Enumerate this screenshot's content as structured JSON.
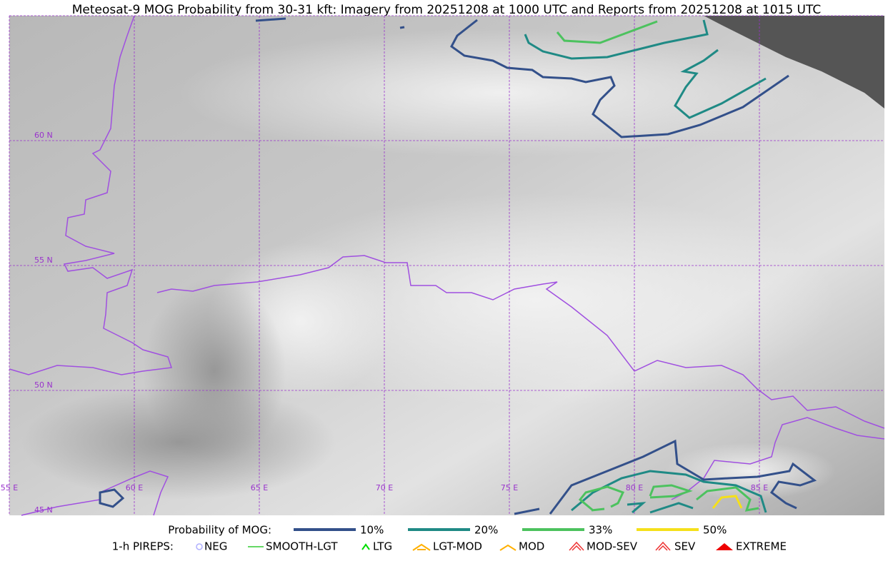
{
  "title": "Meteosat-9 MOG Probability from 30-31 kft: Imagery from 20251208 at 1000 UTC and Reports from 20251208 at 1015 UTC",
  "map": {
    "lat_labels": [
      "60 N",
      "55 N",
      "50 N",
      "45 N"
    ],
    "lon_labels": [
      "55 E",
      "60 E",
      "65 E",
      "70 E",
      "75 E",
      "80 E",
      "85 E"
    ],
    "grid_color": "#9933cc"
  },
  "legend": {
    "mog_label": "Probability of MOG:",
    "mog_levels": [
      {
        "label": "10%",
        "color": "#33508a"
      },
      {
        "label": "20%",
        "color": "#1f8a85"
      },
      {
        "label": "33%",
        "color": "#4cc25e"
      },
      {
        "label": "50%",
        "color": "#f5e01a"
      }
    ],
    "pirep_label": "1-h PIREPS:",
    "pireps": [
      {
        "label": "NEG",
        "color": "#b0b0ff"
      },
      {
        "label": "SMOOTH-LGT",
        "color": "#33cc33"
      },
      {
        "label": "LTG",
        "color": "#00dd00"
      },
      {
        "label": "LGT-MOD",
        "color": "#ffb000"
      },
      {
        "label": "MOD",
        "color": "#ffb000"
      },
      {
        "label": "MOD-SEV",
        "color": "#ee3333"
      },
      {
        "label": "SEV",
        "color": "#ee3333"
      },
      {
        "label": "EXTREME",
        "color": "#ee0000"
      }
    ]
  }
}
